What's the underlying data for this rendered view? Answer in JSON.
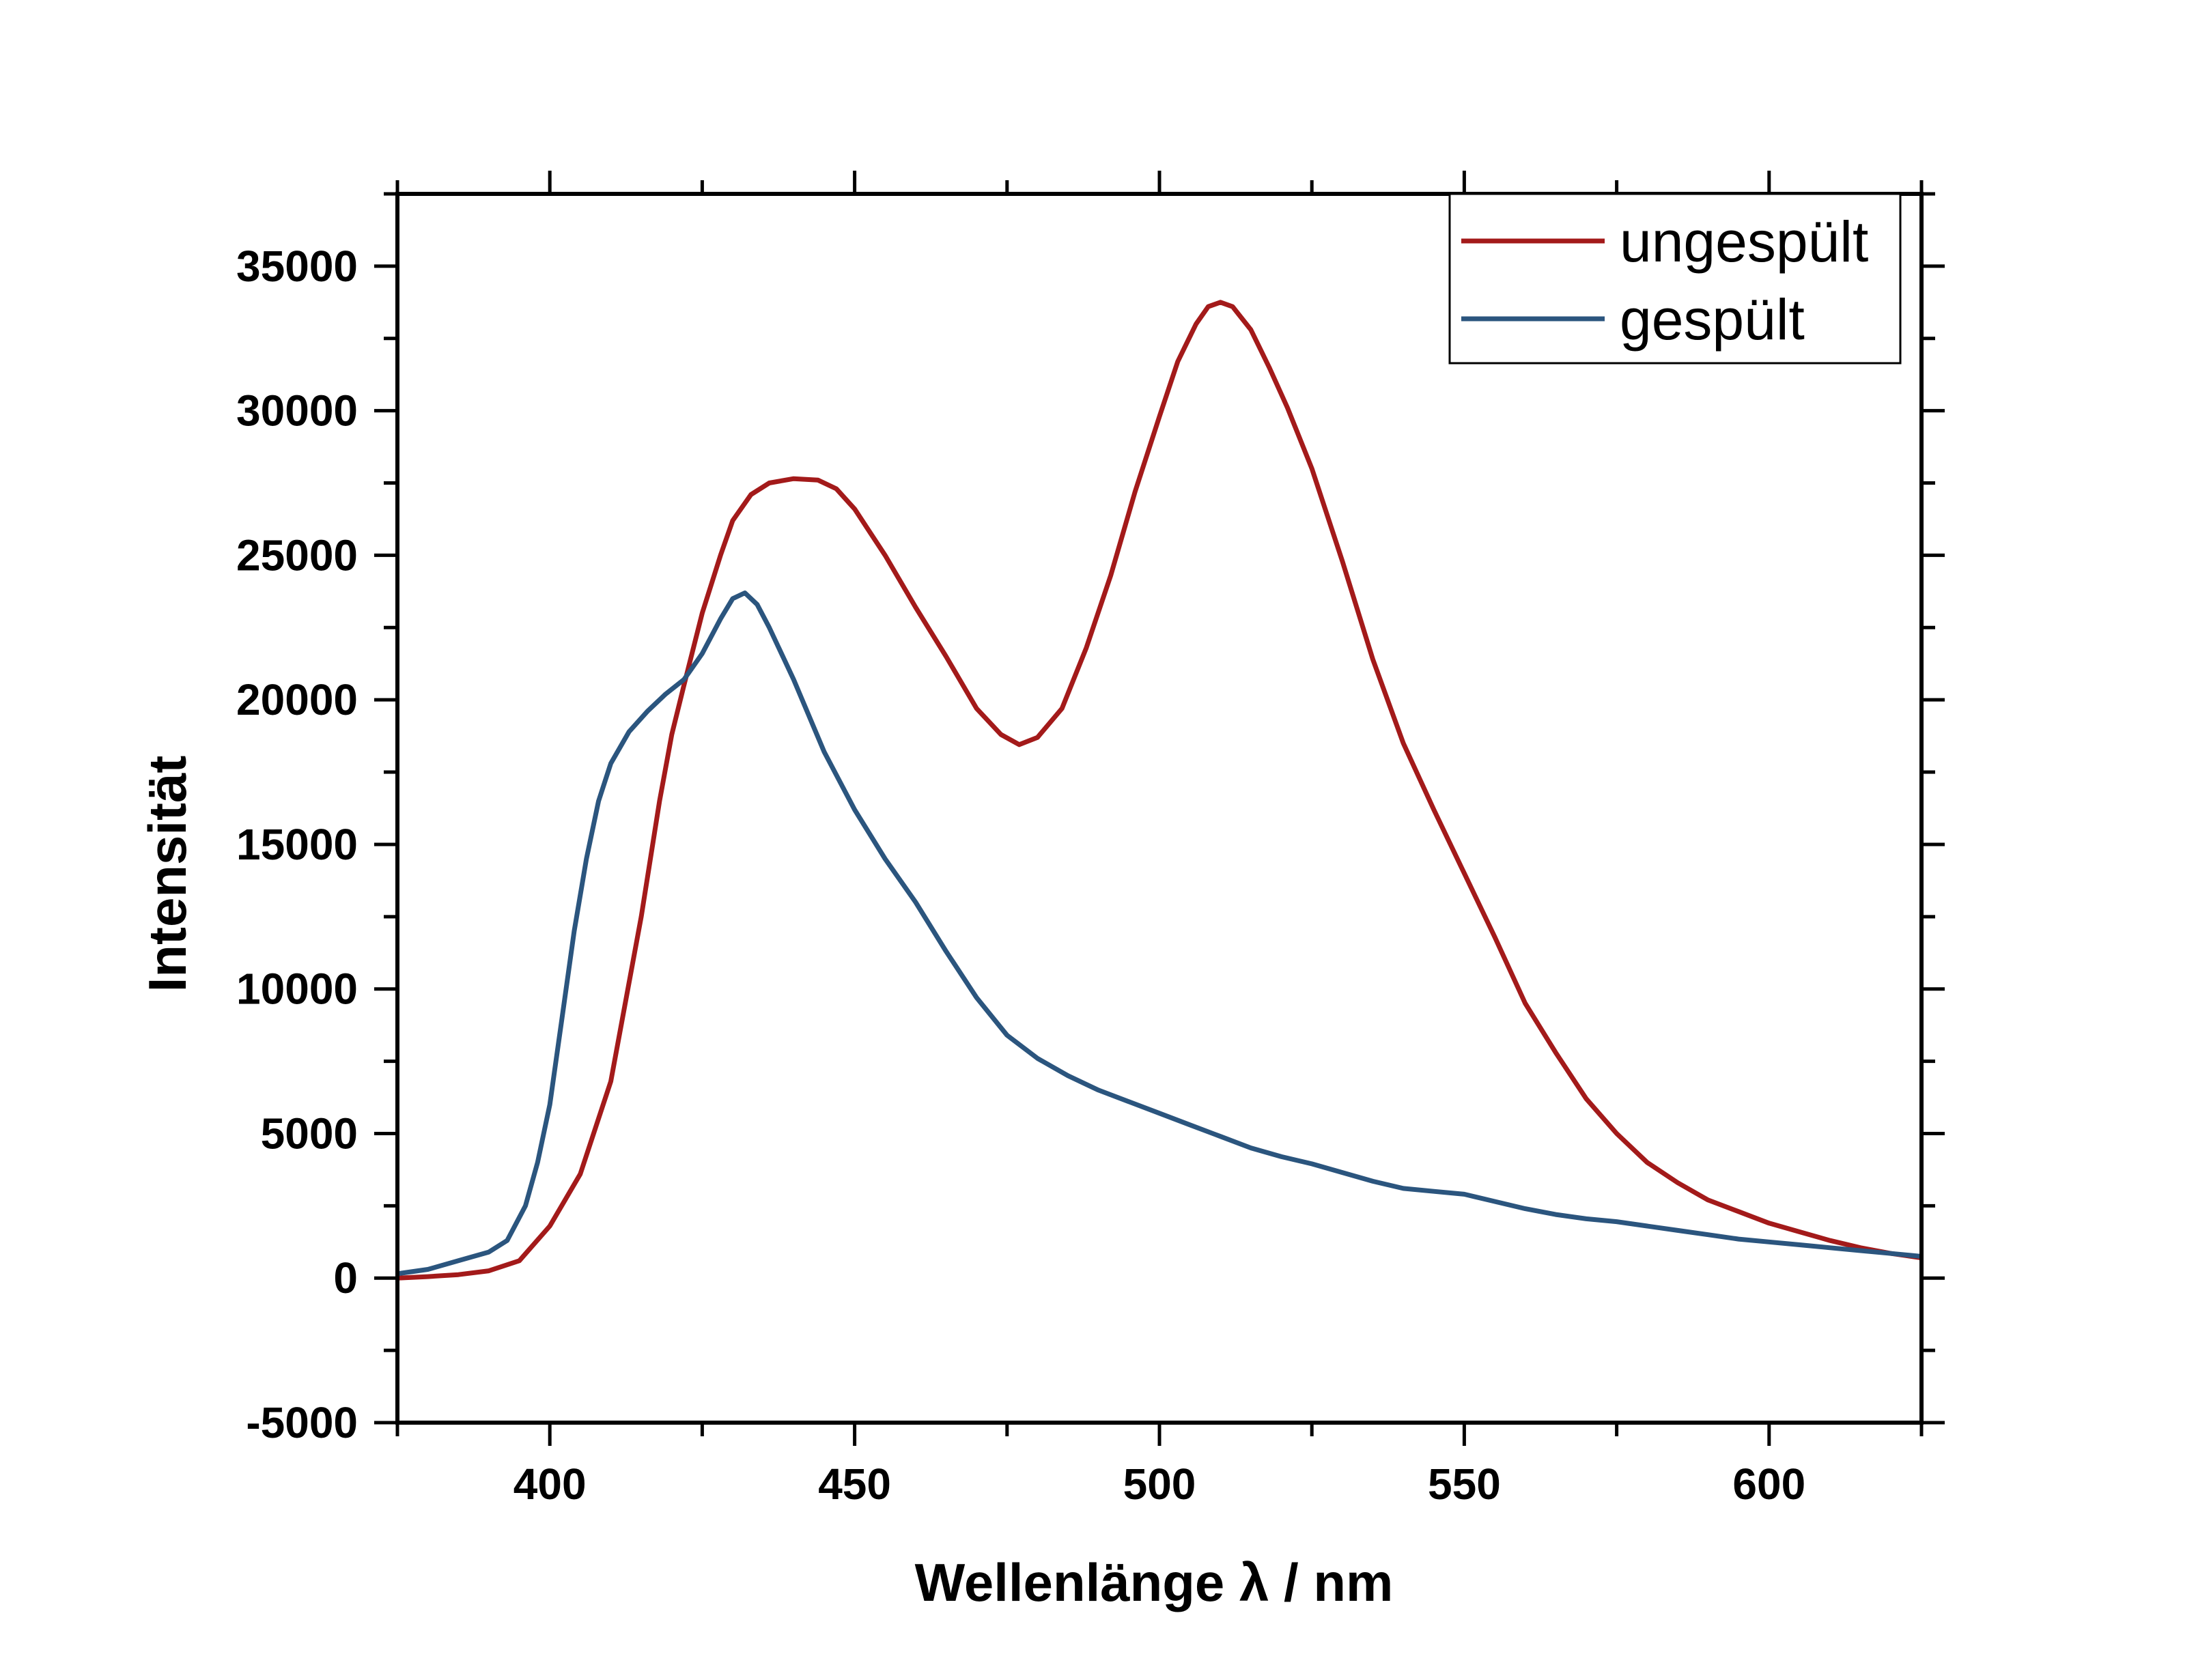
{
  "chart_data": {
    "type": "line",
    "xlabel": "Wellenlänge λ / nm",
    "ylabel": "Intensität",
    "xlim": [
      375,
      625
    ],
    "ylim": [
      -5000,
      37500
    ],
    "xticks": [
      400,
      450,
      500,
      550,
      600
    ],
    "yticks": [
      -5000,
      0,
      5000,
      10000,
      15000,
      20000,
      25000,
      30000,
      35000
    ],
    "legend_position": "top-right",
    "grid": false,
    "series": [
      {
        "name": "ungespült",
        "color": "#a31a1a",
        "points": [
          [
            375,
            0
          ],
          [
            380,
            50
          ],
          [
            385,
            120
          ],
          [
            390,
            250
          ],
          [
            395,
            600
          ],
          [
            400,
            1800
          ],
          [
            405,
            3600
          ],
          [
            410,
            6800
          ],
          [
            415,
            12500
          ],
          [
            418,
            16500
          ],
          [
            420,
            18800
          ],
          [
            422,
            20500
          ],
          [
            425,
            23000
          ],
          [
            428,
            25000
          ],
          [
            430,
            26200
          ],
          [
            433,
            27100
          ],
          [
            436,
            27500
          ],
          [
            440,
            27650
          ],
          [
            444,
            27600
          ],
          [
            447,
            27300
          ],
          [
            450,
            26600
          ],
          [
            455,
            25000
          ],
          [
            460,
            23200
          ],
          [
            465,
            21500
          ],
          [
            470,
            19700
          ],
          [
            474,
            18800
          ],
          [
            477,
            18450
          ],
          [
            480,
            18700
          ],
          [
            484,
            19700
          ],
          [
            488,
            21800
          ],
          [
            492,
            24300
          ],
          [
            496,
            27200
          ],
          [
            500,
            29800
          ],
          [
            503,
            31700
          ],
          [
            506,
            33000
          ],
          [
            508,
            33600
          ],
          [
            510,
            33750
          ],
          [
            512,
            33600
          ],
          [
            515,
            32800
          ],
          [
            518,
            31500
          ],
          [
            521,
            30100
          ],
          [
            525,
            28000
          ],
          [
            530,
            24800
          ],
          [
            535,
            21400
          ],
          [
            540,
            18500
          ],
          [
            545,
            16200
          ],
          [
            550,
            14000
          ],
          [
            555,
            11800
          ],
          [
            560,
            9500
          ],
          [
            565,
            7800
          ],
          [
            570,
            6200
          ],
          [
            575,
            5000
          ],
          [
            580,
            4000
          ],
          [
            585,
            3300
          ],
          [
            590,
            2700
          ],
          [
            595,
            2300
          ],
          [
            600,
            1900
          ],
          [
            605,
            1600
          ],
          [
            610,
            1300
          ],
          [
            615,
            1050
          ],
          [
            620,
            850
          ],
          [
            625,
            700
          ]
        ]
      },
      {
        "name": "gespült",
        "color": "#2b557e",
        "points": [
          [
            375,
            150
          ],
          [
            380,
            300
          ],
          [
            385,
            600
          ],
          [
            390,
            900
          ],
          [
            393,
            1300
          ],
          [
            396,
            2500
          ],
          [
            398,
            4000
          ],
          [
            400,
            6000
          ],
          [
            402,
            9000
          ],
          [
            404,
            12000
          ],
          [
            406,
            14500
          ],
          [
            408,
            16500
          ],
          [
            410,
            17800
          ],
          [
            413,
            18900
          ],
          [
            416,
            19600
          ],
          [
            419,
            20200
          ],
          [
            422,
            20700
          ],
          [
            425,
            21600
          ],
          [
            428,
            22800
          ],
          [
            430,
            23500
          ],
          [
            432,
            23700
          ],
          [
            434,
            23300
          ],
          [
            436,
            22500
          ],
          [
            440,
            20700
          ],
          [
            445,
            18200
          ],
          [
            450,
            16200
          ],
          [
            455,
            14500
          ],
          [
            460,
            13000
          ],
          [
            465,
            11300
          ],
          [
            470,
            9700
          ],
          [
            475,
            8400
          ],
          [
            480,
            7600
          ],
          [
            485,
            7000
          ],
          [
            490,
            6500
          ],
          [
            495,
            6100
          ],
          [
            500,
            5700
          ],
          [
            505,
            5300
          ],
          [
            510,
            4900
          ],
          [
            515,
            4500
          ],
          [
            520,
            4200
          ],
          [
            525,
            3950
          ],
          [
            530,
            3650
          ],
          [
            535,
            3350
          ],
          [
            540,
            3100
          ],
          [
            545,
            3000
          ],
          [
            550,
            2900
          ],
          [
            555,
            2650
          ],
          [
            560,
            2400
          ],
          [
            565,
            2200
          ],
          [
            570,
            2050
          ],
          [
            575,
            1950
          ],
          [
            580,
            1800
          ],
          [
            585,
            1650
          ],
          [
            590,
            1500
          ],
          [
            595,
            1350
          ],
          [
            600,
            1250
          ],
          [
            605,
            1150
          ],
          [
            610,
            1050
          ],
          [
            615,
            950
          ],
          [
            620,
            850
          ],
          [
            625,
            750
          ]
        ]
      }
    ]
  }
}
